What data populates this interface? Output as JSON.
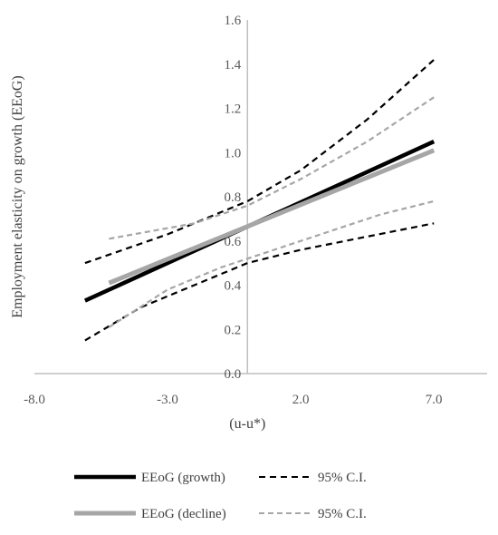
{
  "chart_data": {
    "type": "line",
    "xlabel": "(u-u*)",
    "ylabel": "Employment elasticity on growth (EEoG)",
    "xlim": [
      -8.0,
      9.0
    ],
    "ylim": [
      0.0,
      1.6
    ],
    "x_ticks": [
      "-8.0",
      "-3.0",
      "2.0",
      "7.0"
    ],
    "x_tick_values": [
      -8.0,
      -3.0,
      2.0,
      7.0
    ],
    "y_ticks": [
      "0.0",
      "0.2",
      "0.4",
      "0.6",
      "0.8",
      "1.0",
      "1.2",
      "1.4",
      "1.6"
    ],
    "y_tick_values": [
      0.0,
      0.2,
      0.4,
      0.6,
      0.8,
      1.0,
      1.2,
      1.4,
      1.6
    ],
    "grid": false,
    "legend_position": "bottom",
    "series": [
      {
        "key": "growth",
        "name": "EEoG (growth)",
        "color": "#000000",
        "style": "solid",
        "x": [
          -6.1,
          7.0
        ],
        "y": [
          0.33,
          1.05
        ]
      },
      {
        "key": "growth_ci_upper",
        "name": "95% C.I.",
        "color": "#000000",
        "style": "dashed",
        "x": [
          -6.1,
          -3.0,
          0.0,
          2.0,
          4.5,
          7.0
        ],
        "y": [
          0.5,
          0.63,
          0.78,
          0.92,
          1.15,
          1.42
        ]
      },
      {
        "key": "growth_ci_lower",
        "color": "#000000",
        "style": "dashed",
        "x": [
          -6.1,
          -4.0,
          -2.0,
          0.0,
          2.0,
          4.5,
          7.0
        ],
        "y": [
          0.15,
          0.3,
          0.4,
          0.5,
          0.56,
          0.62,
          0.68
        ]
      },
      {
        "key": "decline",
        "name": "EEoG (decline)",
        "color": "#a6a6a6",
        "style": "solid",
        "x": [
          -5.2,
          7.0
        ],
        "y": [
          0.41,
          1.01
        ]
      },
      {
        "key": "decline_ci_upper",
        "name": "95% C.I.",
        "color": "#a6a6a6",
        "style": "dashed",
        "x": [
          -5.2,
          -2.0,
          0.0,
          2.0,
          4.5,
          7.0
        ],
        "y": [
          0.61,
          0.68,
          0.76,
          0.88,
          1.05,
          1.25
        ]
      },
      {
        "key": "decline_ci_lower",
        "color": "#a6a6a6",
        "style": "dashed",
        "x": [
          -5.2,
          -3.0,
          -1.0,
          1.0,
          3.0,
          5.0,
          7.0
        ],
        "y": [
          0.21,
          0.38,
          0.48,
          0.56,
          0.64,
          0.72,
          0.78
        ]
      }
    ],
    "legend": [
      {
        "series": "growth",
        "label": "EEoG (growth)",
        "color": "#000000",
        "style": "solid"
      },
      {
        "series": "growth_ci_upper",
        "label": "95% C.I.",
        "color": "#000000",
        "style": "dashed"
      },
      {
        "series": "decline",
        "label": "EEoG (decline)",
        "color": "#a6a6a6",
        "style": "solid"
      },
      {
        "series": "decline_ci_upper",
        "label": "95% C.I.",
        "color": "#a6a6a6",
        "style": "dashed"
      }
    ]
  }
}
